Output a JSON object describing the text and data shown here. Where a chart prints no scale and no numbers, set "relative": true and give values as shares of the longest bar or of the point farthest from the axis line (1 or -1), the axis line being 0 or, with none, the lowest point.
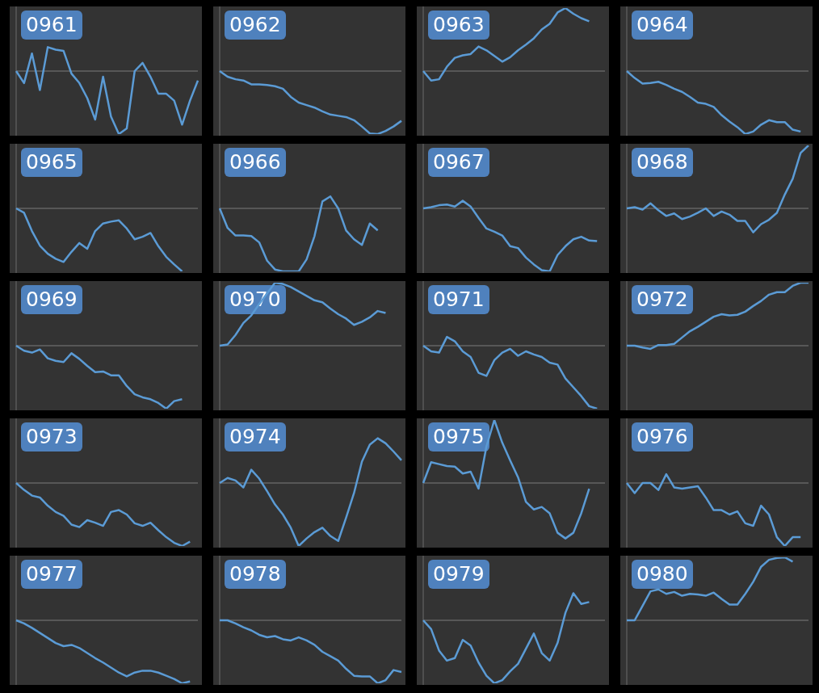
{
  "chart_data": [
    {
      "type": "line",
      "title": "0961",
      "relative": true,
      "categories": [
        null,
        null,
        null,
        null,
        null,
        null,
        null,
        null,
        null,
        null,
        null,
        null,
        null,
        null,
        null,
        null,
        null,
        null,
        null,
        null,
        null,
        null,
        null,
        null
      ],
      "series": [
        {
          "color": "#5b9bd5",
          "values": [
            0,
            -0.19,
            0.28,
            -0.3,
            0.38,
            0.34,
            0.32,
            -0.04,
            -0.19,
            -0.43,
            -0.77,
            -0.09,
            -0.72,
            -1,
            -0.91,
            0,
            0.13,
            -0.09,
            -0.36,
            -0.36,
            -0.47,
            -0.85,
            -0.47,
            -0.15
          ]
        }
      ],
      "ref_lines": [
        {
          "axis": "y",
          "value": 0,
          "color": "#5a5a5a"
        }
      ]
    },
    {
      "type": "line",
      "title": "0962",
      "relative": true,
      "categories": [
        null,
        null,
        null,
        null,
        null,
        null,
        null,
        null,
        null,
        null,
        null,
        null,
        null,
        null,
        null,
        null,
        null,
        null,
        null,
        null,
        null,
        null,
        null,
        null
      ],
      "series": [
        {
          "color": "#5b9bd5",
          "values": [
            0,
            -0.09,
            -0.13,
            -0.15,
            -0.21,
            -0.21,
            -0.22,
            -0.24,
            -0.28,
            -0.41,
            -0.5,
            -0.54,
            -0.58,
            -0.64,
            -0.69,
            -0.71,
            -0.73,
            -0.78,
            -0.88,
            -0.99,
            -1,
            -0.95,
            -0.88,
            -0.79
          ]
        }
      ],
      "ref_lines": [
        {
          "axis": "y",
          "value": 0,
          "color": "#5a5a5a"
        }
      ]
    },
    {
      "type": "line",
      "title": "0963",
      "relative": true,
      "categories": [
        null,
        null,
        null,
        null,
        null,
        null,
        null,
        null,
        null,
        null,
        null,
        null,
        null,
        null,
        null,
        null,
        null,
        null,
        null,
        null,
        null,
        null,
        null,
        null
      ],
      "series": [
        {
          "color": "#5b9bd5",
          "values": [
            0,
            -0.15,
            -0.13,
            0.07,
            0.21,
            0.25,
            0.27,
            0.39,
            0.33,
            0.24,
            0.15,
            0.22,
            0.33,
            0.42,
            0.52,
            0.66,
            0.75,
            0.93,
            1,
            0.91,
            0.84,
            0.79,
            null,
            null
          ]
        }
      ],
      "ref_lines": [
        {
          "axis": "y",
          "value": 0,
          "color": "#5a5a5a"
        }
      ]
    },
    {
      "type": "line",
      "title": "0964",
      "relative": true,
      "categories": [
        null,
        null,
        null,
        null,
        null,
        null,
        null,
        null,
        null,
        null,
        null,
        null,
        null,
        null,
        null,
        null,
        null,
        null,
        null,
        null,
        null,
        null,
        null,
        null
      ],
      "series": [
        {
          "color": "#5b9bd5",
          "values": [
            0,
            -0.11,
            -0.2,
            -0.19,
            -0.17,
            -0.22,
            -0.28,
            -0.33,
            -0.41,
            -0.5,
            -0.52,
            -0.57,
            -0.7,
            -0.8,
            -0.89,
            -1,
            -0.96,
            -0.85,
            -0.78,
            -0.81,
            -0.81,
            -0.93,
            -0.96,
            null
          ]
        }
      ],
      "ref_lines": [
        {
          "axis": "y",
          "value": 0,
          "color": "#5a5a5a"
        }
      ]
    },
    {
      "type": "line",
      "title": "0965",
      "relative": true,
      "categories": [
        null,
        null,
        null,
        null,
        null,
        null,
        null,
        null,
        null,
        null,
        null,
        null,
        null,
        null,
        null,
        null,
        null,
        null,
        null,
        null,
        null,
        null,
        null,
        null
      ],
      "series": [
        {
          "color": "#5b9bd5",
          "values": [
            0,
            -0.07,
            -0.36,
            -0.59,
            -0.72,
            -0.8,
            -0.85,
            -0.69,
            -0.55,
            -0.64,
            -0.36,
            -0.24,
            -0.21,
            -0.19,
            -0.32,
            -0.49,
            -0.45,
            -0.39,
            -0.6,
            -0.77,
            -0.89,
            -1,
            null,
            null
          ]
        }
      ],
      "ref_lines": [
        {
          "axis": "y",
          "value": 0,
          "color": "#5a5a5a"
        }
      ]
    },
    {
      "type": "line",
      "title": "0966",
      "relative": true,
      "categories": [
        null,
        null,
        null,
        null,
        null,
        null,
        null,
        null,
        null,
        null,
        null,
        null,
        null,
        null,
        null,
        null,
        null,
        null,
        null,
        null,
        null,
        null,
        null,
        null
      ],
      "series": [
        {
          "color": "#5b9bd5",
          "values": [
            0,
            -0.31,
            -0.43,
            -0.43,
            -0.44,
            -0.54,
            -0.83,
            -0.97,
            -1,
            -1,
            -1,
            -0.81,
            -0.44,
            0.11,
            0.19,
            0,
            -0.35,
            -0.49,
            -0.58,
            -0.24,
            -0.35,
            null,
            null,
            null
          ]
        }
      ],
      "ref_lines": [
        {
          "axis": "y",
          "value": 0,
          "color": "#5a5a5a"
        }
      ]
    },
    {
      "type": "line",
      "title": "0967",
      "relative": true,
      "categories": [
        null,
        null,
        null,
        null,
        null,
        null,
        null,
        null,
        null,
        null,
        null,
        null,
        null,
        null,
        null,
        null,
        null,
        null,
        null,
        null,
        null,
        null,
        null,
        null
      ],
      "series": [
        {
          "color": "#5b9bd5",
          "values": [
            0,
            0.02,
            0.05,
            0.06,
            0.03,
            0.12,
            0.03,
            -0.15,
            -0.32,
            -0.37,
            -0.43,
            -0.6,
            -0.63,
            -0.78,
            -0.89,
            -0.98,
            -1,
            -0.74,
            -0.6,
            -0.49,
            -0.45,
            -0.51,
            -0.52,
            null
          ]
        }
      ],
      "ref_lines": [
        {
          "axis": "y",
          "value": 0,
          "color": "#5a5a5a"
        }
      ]
    },
    {
      "type": "line",
      "title": "0968",
      "relative": true,
      "categories": [
        null,
        null,
        null,
        null,
        null,
        null,
        null,
        null,
        null,
        null,
        null,
        null,
        null,
        null,
        null,
        null,
        null,
        null,
        null,
        null,
        null,
        null,
        null,
        null
      ],
      "series": [
        {
          "color": "#5b9bd5",
          "values": [
            0,
            0.02,
            -0.02,
            0.08,
            -0.03,
            -0.12,
            -0.08,
            -0.17,
            -0.13,
            -0.07,
            0,
            -0.12,
            -0.05,
            -0.1,
            -0.2,
            -0.2,
            -0.38,
            -0.25,
            -0.18,
            -0.07,
            0.22,
            0.47,
            0.88,
            1
          ]
        }
      ],
      "ref_lines": [
        {
          "axis": "y",
          "value": 0,
          "color": "#5a5a5a"
        }
      ]
    },
    {
      "type": "line",
      "title": "0969",
      "relative": true,
      "categories": [
        null,
        null,
        null,
        null,
        null,
        null,
        null,
        null,
        null,
        null,
        null,
        null,
        null,
        null,
        null,
        null,
        null,
        null,
        null,
        null,
        null,
        null,
        null,
        null
      ],
      "series": [
        {
          "color": "#5b9bd5",
          "values": [
            0,
            -0.08,
            -0.11,
            -0.06,
            -0.2,
            -0.24,
            -0.26,
            -0.12,
            -0.21,
            -0.32,
            -0.42,
            -0.41,
            -0.47,
            -0.47,
            -0.64,
            -0.77,
            -0.82,
            -0.85,
            -0.91,
            -1,
            -0.88,
            -0.85,
            null,
            null
          ]
        }
      ],
      "ref_lines": [
        {
          "axis": "y",
          "value": 0,
          "color": "#5a5a5a"
        }
      ]
    },
    {
      "type": "line",
      "title": "0970",
      "relative": true,
      "categories": [
        null,
        null,
        null,
        null,
        null,
        null,
        null,
        null,
        null,
        null,
        null,
        null,
        null,
        null,
        null,
        null,
        null,
        null,
        null,
        null,
        null,
        null,
        null,
        null
      ],
      "series": [
        {
          "color": "#5b9bd5",
          "values": [
            0,
            0.02,
            0.17,
            0.36,
            0.48,
            0.66,
            0.83,
            1,
            0.98,
            0.93,
            0.86,
            0.79,
            0.72,
            0.69,
            0.59,
            0.5,
            0.43,
            0.33,
            0.38,
            0.45,
            0.55,
            0.52,
            null,
            null
          ]
        }
      ],
      "ref_lines": [
        {
          "axis": "y",
          "value": 0,
          "color": "#5a5a5a"
        }
      ]
    },
    {
      "type": "line",
      "title": "0971",
      "relative": true,
      "categories": [
        null,
        null,
        null,
        null,
        null,
        null,
        null,
        null,
        null,
        null,
        null,
        null,
        null,
        null,
        null,
        null,
        null,
        null,
        null,
        null,
        null,
        null,
        null,
        null
      ],
      "series": [
        {
          "color": "#5b9bd5",
          "values": [
            0,
            -0.09,
            -0.11,
            0.14,
            0.07,
            -0.09,
            -0.18,
            -0.43,
            -0.48,
            -0.23,
            -0.11,
            -0.05,
            -0.16,
            -0.09,
            -0.14,
            -0.18,
            -0.27,
            -0.3,
            -0.52,
            -0.66,
            -0.8,
            -0.96,
            -1,
            null
          ]
        }
      ],
      "ref_lines": [
        {
          "axis": "y",
          "value": 0,
          "color": "#5a5a5a"
        }
      ]
    },
    {
      "type": "line",
      "title": "0972",
      "relative": true,
      "categories": [
        null,
        null,
        null,
        null,
        null,
        null,
        null,
        null,
        null,
        null,
        null,
        null,
        null,
        null,
        null,
        null,
        null,
        null,
        null,
        null,
        null,
        null,
        null,
        null
      ],
      "series": [
        {
          "color": "#5b9bd5",
          "values": [
            0,
            0,
            -0.03,
            -0.05,
            0.01,
            0.01,
            0.03,
            0.13,
            0.23,
            0.3,
            0.38,
            0.46,
            0.5,
            0.48,
            0.49,
            0.54,
            0.63,
            0.71,
            0.81,
            0.85,
            0.85,
            0.95,
            1,
            1
          ]
        }
      ],
      "ref_lines": [
        {
          "axis": "y",
          "value": 0,
          "color": "#5a5a5a"
        }
      ]
    },
    {
      "type": "line",
      "title": "0973",
      "relative": true,
      "categories": [
        null,
        null,
        null,
        null,
        null,
        null,
        null,
        null,
        null,
        null,
        null,
        null,
        null,
        null,
        null,
        null,
        null,
        null,
        null,
        null,
        null,
        null,
        null,
        null
      ],
      "series": [
        {
          "color": "#5b9bd5",
          "values": [
            0,
            -0.11,
            -0.2,
            -0.23,
            -0.36,
            -0.46,
            -0.52,
            -0.66,
            -0.7,
            -0.59,
            -0.63,
            -0.68,
            -0.46,
            -0.43,
            -0.5,
            -0.64,
            -0.68,
            -0.63,
            -0.75,
            -0.86,
            -0.95,
            -1,
            -0.93,
            null
          ]
        }
      ],
      "ref_lines": [
        {
          "axis": "y",
          "value": 0,
          "color": "#5a5a5a"
        }
      ]
    },
    {
      "type": "line",
      "title": "0974",
      "relative": true,
      "categories": [
        null,
        null,
        null,
        null,
        null,
        null,
        null,
        null,
        null,
        null,
        null,
        null,
        null,
        null,
        null,
        null,
        null,
        null,
        null,
        null,
        null,
        null,
        null,
        null
      ],
      "series": [
        {
          "color": "#5b9bd5",
          "values": [
            0,
            0.08,
            0.04,
            -0.07,
            0.21,
            0.07,
            -0.13,
            -0.34,
            -0.5,
            -0.71,
            -1,
            -0.88,
            -0.78,
            -0.71,
            -0.84,
            -0.92,
            -0.55,
            -0.16,
            0.34,
            0.61,
            0.71,
            0.63,
            0.5,
            0.36
          ]
        }
      ],
      "ref_lines": [
        {
          "axis": "y",
          "value": 0,
          "color": "#5a5a5a"
        }
      ]
    },
    {
      "type": "line",
      "title": "0975",
      "relative": true,
      "categories": [
        null,
        null,
        null,
        null,
        null,
        null,
        null,
        null,
        null,
        null,
        null,
        null,
        null,
        null,
        null,
        null,
        null,
        null,
        null,
        null,
        null,
        null,
        null,
        null
      ],
      "series": [
        {
          "color": "#5b9bd5",
          "values": [
            0,
            0.33,
            0.3,
            0.27,
            0.26,
            0.15,
            0.18,
            -0.09,
            0.58,
            1,
            0.64,
            0.36,
            0.09,
            -0.3,
            -0.42,
            -0.38,
            -0.48,
            -0.79,
            -0.88,
            -0.79,
            -0.48,
            -0.09,
            null,
            null
          ]
        }
      ],
      "ref_lines": [
        {
          "axis": "y",
          "value": 0,
          "color": "#5a5a5a"
        }
      ]
    },
    {
      "type": "line",
      "title": "0976",
      "relative": true,
      "categories": [
        null,
        null,
        null,
        null,
        null,
        null,
        null,
        null,
        null,
        null,
        null,
        null,
        null,
        null,
        null,
        null,
        null,
        null,
        null,
        null,
        null,
        null,
        null,
        null
      ],
      "series": [
        {
          "color": "#5b9bd5",
          "values": [
            0,
            -0.16,
            0,
            0,
            -0.11,
            0.14,
            -0.07,
            -0.09,
            -0.07,
            -0.05,
            -0.23,
            -0.43,
            -0.43,
            -0.5,
            -0.45,
            -0.64,
            -0.68,
            -0.36,
            -0.5,
            -0.86,
            -1,
            -0.86,
            -0.86,
            null
          ]
        }
      ],
      "ref_lines": [
        {
          "axis": "y",
          "value": 0,
          "color": "#5a5a5a"
        }
      ]
    },
    {
      "type": "line",
      "title": "0977",
      "relative": true,
      "categories": [
        null,
        null,
        null,
        null,
        null,
        null,
        null,
        null,
        null,
        null,
        null,
        null,
        null,
        null,
        null,
        null,
        null,
        null,
        null,
        null,
        null,
        null,
        null,
        null
      ],
      "series": [
        {
          "color": "#5b9bd5",
          "values": [
            0,
            -0.05,
            -0.12,
            -0.2,
            -0.28,
            -0.36,
            -0.41,
            -0.39,
            -0.44,
            -0.52,
            -0.6,
            -0.67,
            -0.75,
            -0.83,
            -0.89,
            -0.83,
            -0.8,
            -0.8,
            -0.83,
            -0.88,
            -0.93,
            -1,
            -0.97,
            null
          ]
        }
      ],
      "ref_lines": [
        {
          "axis": "y",
          "value": 0,
          "color": "#5a5a5a"
        }
      ]
    },
    {
      "type": "line",
      "title": "0978",
      "relative": true,
      "categories": [
        null,
        null,
        null,
        null,
        null,
        null,
        null,
        null,
        null,
        null,
        null,
        null,
        null,
        null,
        null,
        null,
        null,
        null,
        null,
        null,
        null,
        null,
        null,
        null
      ],
      "series": [
        {
          "color": "#5b9bd5",
          "values": [
            0,
            0,
            -0.05,
            -0.11,
            -0.16,
            -0.23,
            -0.27,
            -0.25,
            -0.3,
            -0.32,
            -0.27,
            -0.32,
            -0.39,
            -0.5,
            -0.57,
            -0.64,
            -0.77,
            -0.88,
            -0.89,
            -0.89,
            -1,
            -0.95,
            -0.79,
            -0.82
          ]
        }
      ],
      "ref_lines": [
        {
          "axis": "y",
          "value": 0,
          "color": "#5a5a5a"
        }
      ]
    },
    {
      "type": "line",
      "title": "0979",
      "relative": true,
      "categories": [
        null,
        null,
        null,
        null,
        null,
        null,
        null,
        null,
        null,
        null,
        null,
        null,
        null,
        null,
        null,
        null,
        null,
        null,
        null,
        null,
        null,
        null,
        null,
        null
      ],
      "series": [
        {
          "color": "#5b9bd5",
          "values": [
            0,
            -0.14,
            -0.48,
            -0.64,
            -0.6,
            -0.31,
            -0.4,
            -0.67,
            -0.88,
            -1,
            -0.95,
            -0.81,
            -0.69,
            -0.45,
            -0.21,
            -0.52,
            -0.64,
            -0.36,
            0.12,
            0.43,
            0.26,
            0.29,
            null,
            null
          ]
        }
      ],
      "ref_lines": [
        {
          "axis": "y",
          "value": 0,
          "color": "#5a5a5a"
        }
      ]
    },
    {
      "type": "line",
      "title": "0980",
      "relative": true,
      "categories": [
        null,
        null,
        null,
        null,
        null,
        null,
        null,
        null,
        null,
        null,
        null,
        null,
        null,
        null,
        null,
        null,
        null,
        null,
        null,
        null,
        null,
        null,
        null,
        null
      ],
      "series": [
        {
          "color": "#5b9bd5",
          "values": [
            0,
            0,
            0.23,
            0.46,
            0.49,
            0.42,
            0.45,
            0.39,
            0.42,
            0.41,
            0.39,
            0.44,
            0.34,
            0.25,
            0.25,
            0.42,
            0.61,
            0.85,
            0.96,
            0.99,
            1,
            0.93,
            null,
            null
          ]
        }
      ],
      "ref_lines": [
        {
          "axis": "y",
          "value": 0,
          "color": "#5a5a5a"
        }
      ]
    }
  ]
}
